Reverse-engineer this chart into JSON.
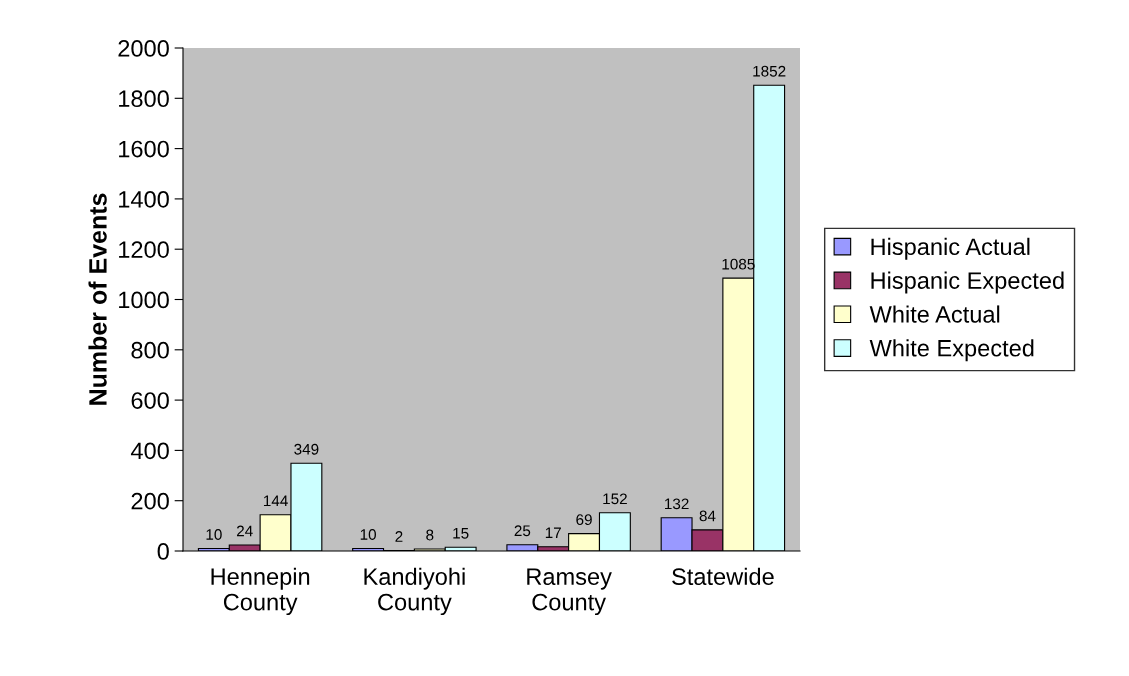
{
  "chart_data": {
    "type": "bar",
    "ylabel": "Number of Events",
    "categories": [
      "Hennepin\nCounty",
      "Kandiyohi\nCounty",
      "Ramsey\nCounty",
      "Statewide"
    ],
    "series": [
      {
        "name": "Hispanic Actual",
        "color": "#9999ff",
        "values": [
          10,
          10,
          25,
          132
        ]
      },
      {
        "name": "Hispanic Expected",
        "color": "#993366",
        "values": [
          24,
          2,
          17,
          84
        ]
      },
      {
        "name": "White Actual",
        "color": "#ffffcc",
        "values": [
          144,
          8,
          69,
          1085
        ]
      },
      {
        "name": "White Expected",
        "color": "#ccffff",
        "values": [
          349,
          15,
          152,
          1852
        ]
      }
    ],
    "ylim": [
      0,
      2000
    ],
    "yticks": [
      0,
      200,
      400,
      600,
      800,
      1000,
      1200,
      1400,
      1600,
      1800,
      2000
    ],
    "data_labels": true,
    "legend": "right",
    "grid": false
  }
}
